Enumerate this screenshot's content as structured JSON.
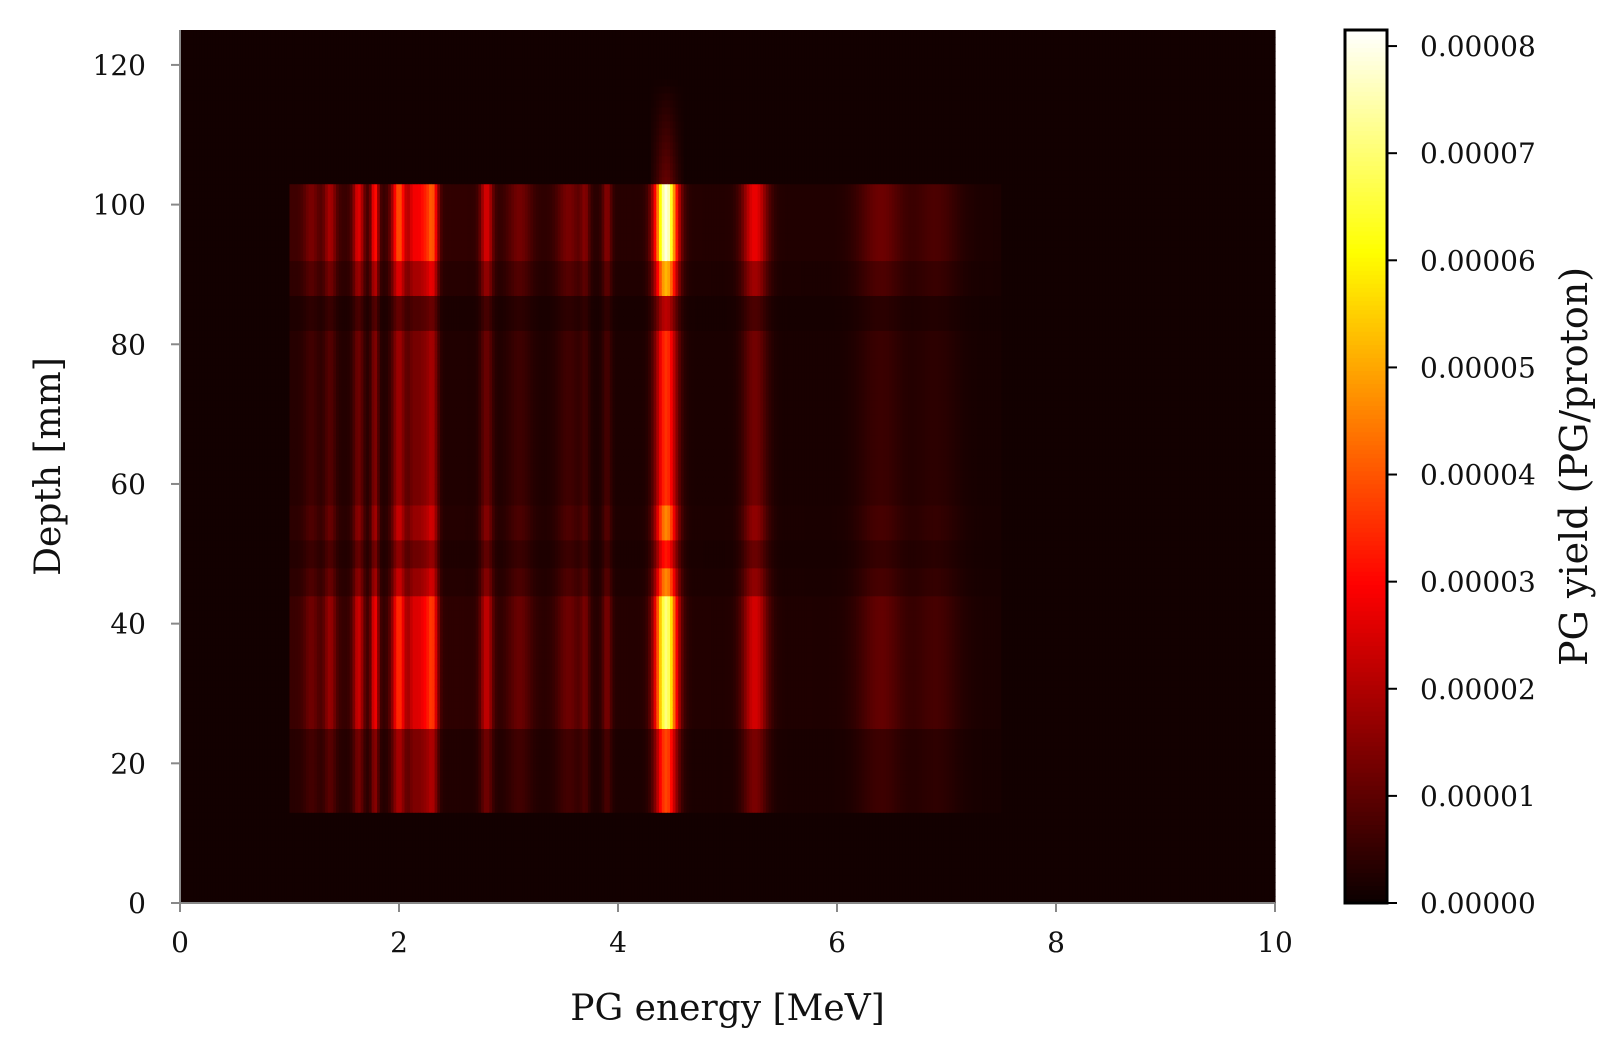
{
  "chart_data": {
    "type": "heatmap",
    "title": "",
    "xlabel": "PG energy [MeV]",
    "ylabel": "Depth [mm]",
    "xlim": [
      0,
      10
    ],
    "ylim": [
      0,
      125
    ],
    "xticks": [
      0,
      2,
      4,
      6,
      8,
      10
    ],
    "xtick_labels": [
      "0",
      "2",
      "4",
      "6",
      "8",
      "10"
    ],
    "yticks": [
      0,
      20,
      40,
      60,
      80,
      100,
      120
    ],
    "ytick_labels": [
      "0",
      "20",
      "40",
      "60",
      "80",
      "100",
      "120"
    ],
    "colormap": "hot",
    "colorbar": {
      "label": "PG yield (PG/proton)",
      "range": [
        0,
        8.15e-05
      ],
      "ticks": [
        0,
        1e-05,
        2e-05,
        3e-05,
        4e-05,
        5e-05,
        6e-05,
        7e-05,
        8e-05
      ],
      "tick_labels": [
        "0.00000",
        "0.00001",
        "0.00002",
        "0.00003",
        "0.00004",
        "0.00005",
        "0.00006",
        "0.00007",
        "0.00008"
      ]
    },
    "background_value": 1e-06,
    "energy_lines": [
      {
        "energy": 1.2,
        "width": 0.05,
        "amplitude": 8e-06
      },
      {
        "energy": 1.37,
        "width": 0.04,
        "amplitude": 1.4e-05
      },
      {
        "energy": 1.63,
        "width": 0.035,
        "amplitude": 2.2e-05
      },
      {
        "energy": 1.78,
        "width": 0.025,
        "amplitude": 2.8e-05
      },
      {
        "energy": 2.0,
        "width": 0.045,
        "amplitude": 3.6e-05
      },
      {
        "energy": 2.13,
        "width": 0.04,
        "amplitude": 2e-05
      },
      {
        "energy": 2.23,
        "width": 0.05,
        "amplitude": 2.6e-05
      },
      {
        "energy": 2.31,
        "width": 0.035,
        "amplitude": 3e-05
      },
      {
        "energy": 2.8,
        "width": 0.04,
        "amplitude": 2.2e-05
      },
      {
        "energy": 3.1,
        "width": 0.08,
        "amplitude": 9e-06
      },
      {
        "energy": 3.55,
        "width": 0.08,
        "amplitude": 1e-05
      },
      {
        "energy": 3.7,
        "width": 0.03,
        "amplitude": 1e-05
      },
      {
        "energy": 3.9,
        "width": 0.03,
        "amplitude": 1.2e-05
      },
      {
        "energy": 4.44,
        "width": 0.07,
        "amplitude": 8e-05
      },
      {
        "energy": 5.25,
        "width": 0.08,
        "amplitude": 2.6e-05
      },
      {
        "energy": 6.4,
        "width": 0.15,
        "amplitude": 1e-05
      },
      {
        "energy": 6.9,
        "width": 0.15,
        "amplitude": 6e-06
      }
    ],
    "depth_bands": [
      {
        "from": 13,
        "to": 25,
        "weight": 0.45
      },
      {
        "from": 25,
        "to": 44,
        "weight": 0.85
      },
      {
        "from": 44,
        "to": 48,
        "weight": 0.55
      },
      {
        "from": 48,
        "to": 52,
        "weight": 0.38
      },
      {
        "from": 52,
        "to": 57,
        "weight": 0.55
      },
      {
        "from": 57,
        "to": 82,
        "weight": 0.42
      },
      {
        "from": 82,
        "to": 87,
        "weight": 0.25
      },
      {
        "from": 87,
        "to": 92,
        "weight": 0.62
      },
      {
        "from": 92,
        "to": 103,
        "weight": 0.95
      }
    ],
    "grid": false
  }
}
